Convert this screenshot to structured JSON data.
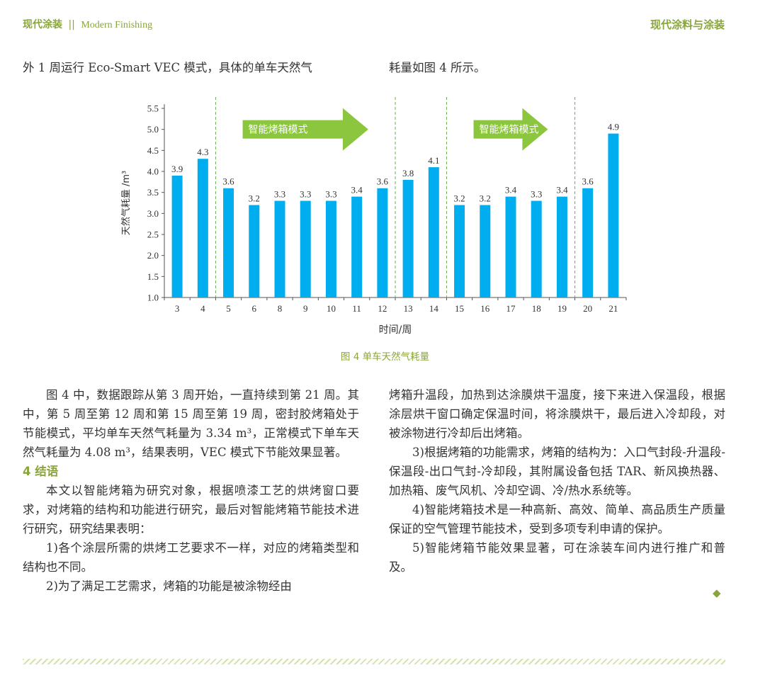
{
  "header": {
    "brand": "现代涂装",
    "separator": "||",
    "brand_en": "Modern Finishing",
    "right": "现代涂料与涂装"
  },
  "top_text": {
    "left": "外 1 周运行 Eco-Smart VEC 模式，具体的单车天然气",
    "right": "耗量如图 4 所示。"
  },
  "figure_caption": "图 4    单车天然气耗量",
  "chart_data": {
    "type": "bar",
    "categories": [
      "3",
      "4",
      "5",
      "6",
      "8",
      "9",
      "10",
      "11",
      "12",
      "13",
      "14",
      "15",
      "16",
      "17",
      "18",
      "19",
      "20",
      "21"
    ],
    "values": [
      3.9,
      4.3,
      3.6,
      3.2,
      3.3,
      3.3,
      3.3,
      3.4,
      3.6,
      3.8,
      4.1,
      3.2,
      3.2,
      3.4,
      3.3,
      3.4,
      3.6,
      4.9
    ],
    "data_labels": [
      "3.9",
      "4.3",
      "3.6",
      "3.2",
      "3.3",
      "3.3",
      "3.3",
      "3.4",
      "3.6",
      "3.8",
      "4.1",
      "3.2",
      "3.2",
      "3.4",
      "3.3",
      "3.4",
      "3.6",
      "4.9"
    ],
    "xlabel": "时间/周",
    "ylabel": "天然气耗量 /m³",
    "ylim": [
      1.0,
      5.5
    ],
    "yticks": [
      "1.0",
      "1.5",
      "2.0",
      "2.5",
      "3.0",
      "3.5",
      "4.0",
      "4.5",
      "5.0",
      "5.5"
    ],
    "divider_after_weeks": [
      "4",
      "12",
      "14",
      "19"
    ],
    "annotations": [
      {
        "text": "智能烤箱模式",
        "from_week": "5",
        "to_week": "12"
      },
      {
        "text": "智能烤箱模式",
        "from_week": "15",
        "to_week": "19"
      }
    ],
    "bar_color": "#00aeef",
    "arrow_color": "#8cc63f",
    "grid": false
  },
  "left_column": {
    "p1": "图 4 中，数据跟踪从第 3 周开始，一直持续到第 21 周。其中，第 5 周至第 12 周和第 15 周至第 19 周，密封胶烤箱处于节能模式，平均单车天然气耗量为 3.34 m³，正常模式下单车天然气耗量为 4.08 m³，结果表明，VEC 模式下节能效果显著。",
    "section_title": "4   结语",
    "p2": "本文以智能烤箱为研究对象，根据喷漆工艺的烘烤窗口要求，对烤箱的结构和功能进行研究，最后对智能烤箱节能技术进行研究，研究结果表明：",
    "p3": "1)各个涂层所需的烘烤工艺要求不一样，对应的烤箱类型和结构也不同。",
    "p4": "2)为了满足工艺需求，烤箱的功能是被涂物经由"
  },
  "right_column": {
    "p1": "烤箱升温段，加热到达涂膜烘干温度，接下来进入保温段，根据涂层烘干窗口确定保温时间，将涂膜烘干，最后进入冷却段，对被涂物进行冷却后出烤箱。",
    "p2": "3)根据烤箱的功能需求，烤箱的结构为：入口气封段-升温段-保温段-出口气封-冷却段，其附属设备包括 TAR、新风换热器、加热箱、废气风机、冷却空调、冷/热水系统等。",
    "p3": "4)智能烤箱技术是一种高新、高效、简单、高品质生产质量保证的空气管理节能技术，受到多项专利申请的保护。",
    "p4": "5)智能烤箱节能效果显著，可在涂装车间内进行推广和普及。",
    "end_mark": "◆"
  }
}
